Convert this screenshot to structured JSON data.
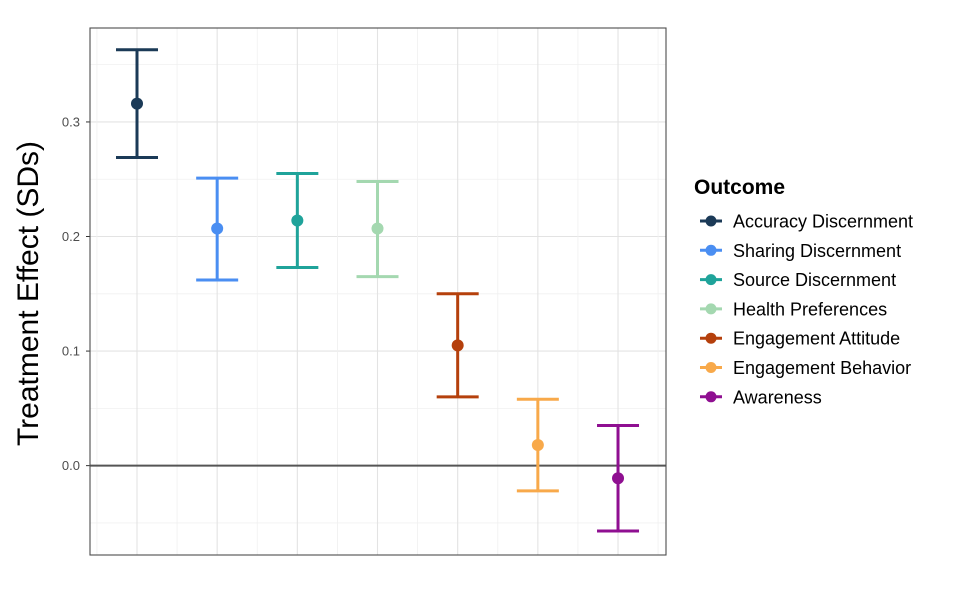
{
  "chart_data": {
    "type": "errorbar",
    "title": "",
    "xlabel": "",
    "ylabel": "Treatment Effect (SDs)",
    "ylim": [
      -0.078,
      0.382
    ],
    "yticks": [
      0.0,
      0.1,
      0.2,
      0.3
    ],
    "ytick_labels": [
      "0.0",
      "0.1",
      "0.2",
      "0.3"
    ],
    "grid": true,
    "reference_line": 0.0,
    "legend": {
      "title": "Outcome",
      "placement": "right"
    },
    "series": [
      {
        "name": "Accuracy Discernment",
        "estimate": 0.316,
        "lower": 0.269,
        "upper": 0.363,
        "color": "#1b3a57"
      },
      {
        "name": "Sharing Discernment",
        "estimate": 0.207,
        "lower": 0.162,
        "upper": 0.251,
        "color": "#4a8ef2"
      },
      {
        "name": "Source Discernment",
        "estimate": 0.214,
        "lower": 0.173,
        "upper": 0.255,
        "color": "#1fa39a"
      },
      {
        "name": "Health Preferences",
        "estimate": 0.207,
        "lower": 0.165,
        "upper": 0.248,
        "color": "#a4d8b0"
      },
      {
        "name": "Engagement Attitude",
        "estimate": 0.105,
        "lower": 0.06,
        "upper": 0.15,
        "color": "#b5400c"
      },
      {
        "name": "Engagement Behavior",
        "estimate": 0.018,
        "lower": -0.022,
        "upper": 0.058,
        "color": "#f8a94a"
      },
      {
        "name": "Awareness",
        "estimate": -0.011,
        "lower": -0.057,
        "upper": 0.035,
        "color": "#8f0f91"
      }
    ]
  }
}
